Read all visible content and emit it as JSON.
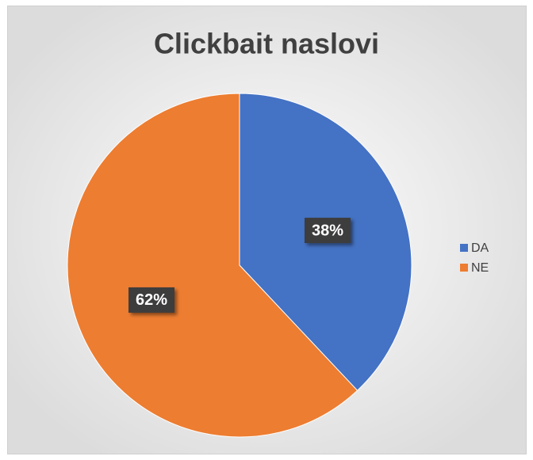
{
  "chart_data": {
    "type": "pie",
    "title": "Clickbait naslovi",
    "categories": [
      "DA",
      "NE"
    ],
    "values": [
      38,
      62
    ],
    "value_labels": [
      "38%",
      "62%"
    ],
    "colors": [
      "#4472c4",
      "#ed7d31"
    ],
    "legend": "right"
  }
}
